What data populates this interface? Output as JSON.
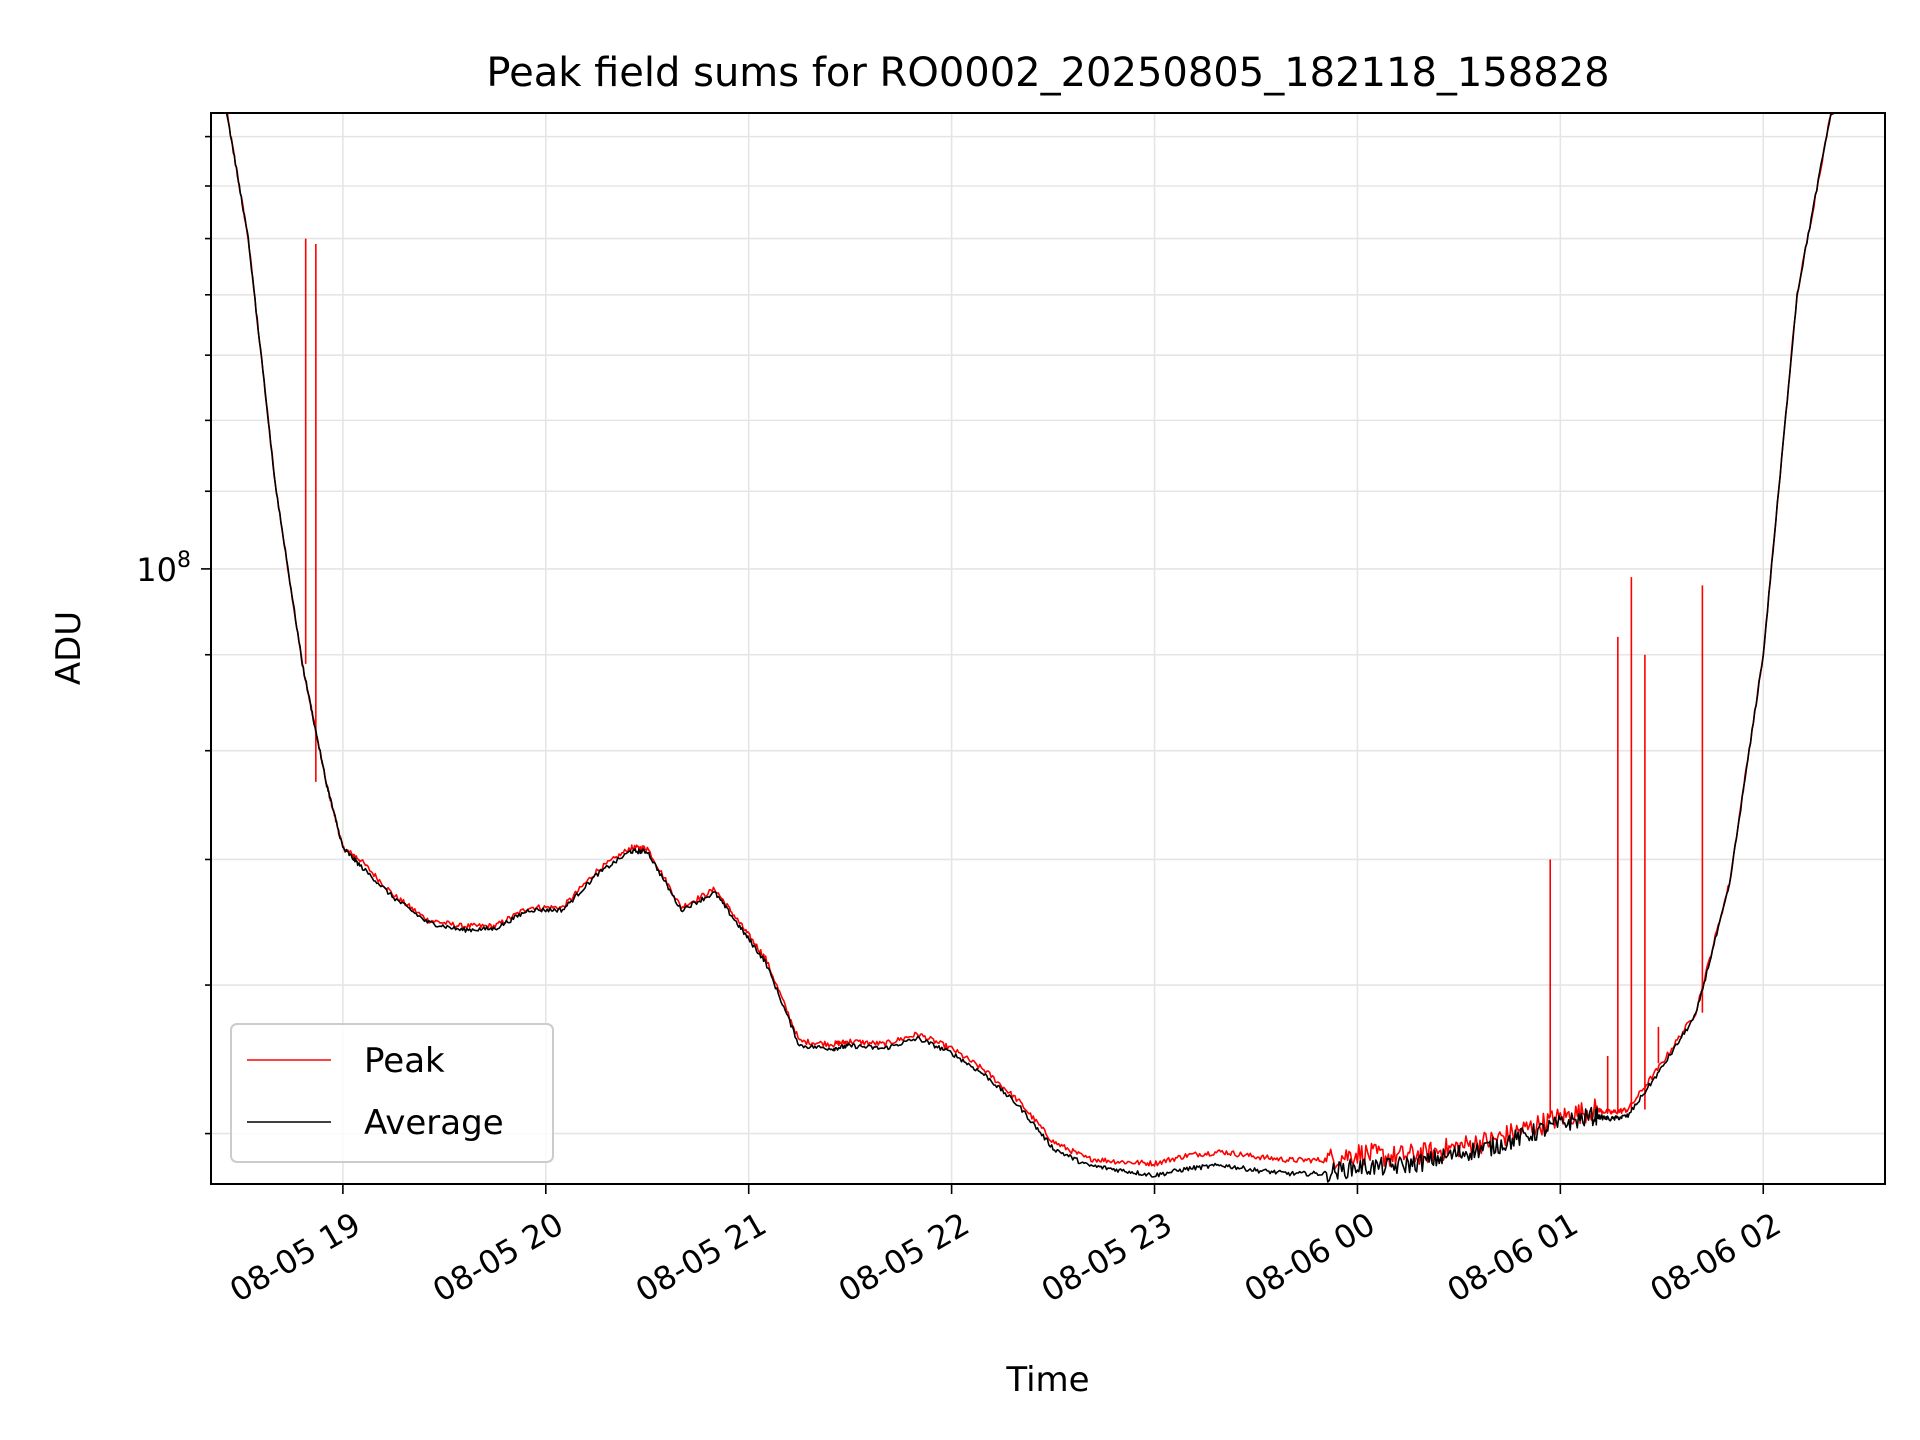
{
  "chart_data": {
    "type": "line",
    "title": "Peak field sums for RO0002_20250805_182118_158828",
    "xlabel": "Time",
    "ylabel": "ADU",
    "y_scale": "log",
    "y_tick_labels": [
      {
        "value": 100000000,
        "mantissa": "10",
        "exponent": "8"
      }
    ],
    "ylim": [
      47000000,
      175000000
    ],
    "x_ticks": [
      "08-05 19",
      "08-05 20",
      "08-05 21",
      "08-05 22",
      "08-05 23",
      "08-06 00",
      "08-06 01",
      "08-06 02"
    ],
    "xlim": [
      "2025-08-05 18:21",
      "2025-08-06 02:36"
    ],
    "grid": true,
    "legend_position": "lower-left",
    "series": [
      {
        "name": "Peak",
        "color": "#ff0000",
        "x": [
          "2025-08-05 18:25",
          "2025-08-05 18:32",
          "2025-08-05 18:40",
          "2025-08-05 18:48",
          "2025-08-05 18:55",
          "2025-08-05 19:00",
          "2025-08-05 19:05",
          "2025-08-05 19:15",
          "2025-08-05 19:25",
          "2025-08-05 19:35",
          "2025-08-05 19:45",
          "2025-08-05 19:55",
          "2025-08-05 20:05",
          "2025-08-05 20:15",
          "2025-08-05 20:25",
          "2025-08-05 20:30",
          "2025-08-05 20:40",
          "2025-08-05 20:50",
          "2025-08-05 20:58",
          "2025-08-05 21:05",
          "2025-08-05 21:15",
          "2025-08-05 21:25",
          "2025-08-05 21:30",
          "2025-08-05 21:40",
          "2025-08-05 21:50",
          "2025-08-05 22:00",
          "2025-08-05 22:10",
          "2025-08-05 22:20",
          "2025-08-05 22:30",
          "2025-08-05 22:40",
          "2025-08-05 22:50",
          "2025-08-05 23:00",
          "2025-08-05 23:10",
          "2025-08-05 23:20",
          "2025-08-05 23:30",
          "2025-08-05 23:40",
          "2025-08-05 23:50",
          "2025-08-06 00:00",
          "2025-08-06 00:10",
          "2025-08-06 00:20",
          "2025-08-06 00:30",
          "2025-08-06 00:40",
          "2025-08-06 00:50",
          "2025-08-06 01:00",
          "2025-08-06 01:10",
          "2025-08-06 01:15",
          "2025-08-06 01:20",
          "2025-08-06 01:30",
          "2025-08-06 01:40",
          "2025-08-06 01:50",
          "2025-08-06 02:00",
          "2025-08-06 02:10",
          "2025-08-06 02:20",
          "2025-08-06 02:25"
        ],
        "y": [
          178000000,
          150000000,
          111000000,
          89000000,
          77000000,
          71000000,
          70000000,
          67000000,
          65000000,
          64500000,
          64500000,
          66000000,
          66000000,
          69000000,
          71000000,
          71000000,
          66000000,
          67500000,
          64500000,
          62000000,
          56000000,
          55800000,
          56000000,
          55800000,
          56500000,
          55500000,
          54000000,
          52000000,
          49500000,
          48500000,
          48300000,
          48200000,
          48700000,
          48900000,
          48600000,
          48400000,
          48400000,
          48800000,
          48600000,
          48800000,
          49200000,
          49600000,
          50300000,
          51000000,
          51500000,
          51300000,
          51500000,
          54500000,
          58000000,
          68000000,
          90000000,
          140000000,
          175000000,
          178000000
        ],
        "spikes": [
          {
            "x": "2025-08-05 18:49",
            "y": 150000000
          },
          {
            "x": "2025-08-05 18:52",
            "y": 149000000
          },
          {
            "x": "2025-08-06 00:57",
            "y": 70000000
          },
          {
            "x": "2025-08-06 01:14",
            "y": 55000000
          },
          {
            "x": "2025-08-06 01:17",
            "y": 92000000
          },
          {
            "x": "2025-08-06 01:21",
            "y": 99000000
          },
          {
            "x": "2025-08-06 01:25",
            "y": 90000000
          },
          {
            "x": "2025-08-06 01:29",
            "y": 57000000
          },
          {
            "x": "2025-08-06 01:42",
            "y": 98000000
          },
          {
            "x": "2025-08-06 01:46",
            "y": 68000000
          }
        ]
      },
      {
        "name": "Average",
        "color": "#000000",
        "x": [
          "2025-08-05 18:25",
          "2025-08-05 18:32",
          "2025-08-05 18:40",
          "2025-08-05 18:48",
          "2025-08-05 18:55",
          "2025-08-05 19:00",
          "2025-08-05 19:05",
          "2025-08-05 19:15",
          "2025-08-05 19:25",
          "2025-08-05 19:35",
          "2025-08-05 19:45",
          "2025-08-05 19:55",
          "2025-08-05 20:05",
          "2025-08-05 20:15",
          "2025-08-05 20:25",
          "2025-08-05 20:30",
          "2025-08-05 20:40",
          "2025-08-05 20:50",
          "2025-08-05 20:58",
          "2025-08-05 21:05",
          "2025-08-05 21:15",
          "2025-08-05 21:25",
          "2025-08-05 21:30",
          "2025-08-05 21:40",
          "2025-08-05 21:50",
          "2025-08-05 22:00",
          "2025-08-05 22:10",
          "2025-08-05 22:20",
          "2025-08-05 22:30",
          "2025-08-05 22:40",
          "2025-08-05 22:50",
          "2025-08-05 23:00",
          "2025-08-05 23:10",
          "2025-08-05 23:20",
          "2025-08-05 23:30",
          "2025-08-05 23:40",
          "2025-08-05 23:50",
          "2025-08-06 00:00",
          "2025-08-06 00:10",
          "2025-08-06 00:20",
          "2025-08-06 00:30",
          "2025-08-06 00:40",
          "2025-08-06 00:50",
          "2025-08-06 01:00",
          "2025-08-06 01:10",
          "2025-08-06 01:15",
          "2025-08-06 01:20",
          "2025-08-06 01:30",
          "2025-08-06 01:40",
          "2025-08-06 01:50",
          "2025-08-06 02:00",
          "2025-08-06 02:10",
          "2025-08-06 02:20",
          "2025-08-06 02:25"
        ],
        "y": [
          178000000,
          150000000,
          111000000,
          89000000,
          77000000,
          71000000,
          69500000,
          66800000,
          64800000,
          64200000,
          64300000,
          65800000,
          65800000,
          68700000,
          70700000,
          70700000,
          65800000,
          67200000,
          64200000,
          61700000,
          55700000,
          55500000,
          55700000,
          55500000,
          56200000,
          55200000,
          53700000,
          51700000,
          49100000,
          48100000,
          47800000,
          47500000,
          47900000,
          48100000,
          47800000,
          47600000,
          47600000,
          48000000,
          48000000,
          48300000,
          48800000,
          49200000,
          49900000,
          50600000,
          51100000,
          50900000,
          51100000,
          54200000,
          57800000,
          67800000,
          90000000,
          140000000,
          175000000,
          178000000
        ]
      }
    ]
  }
}
